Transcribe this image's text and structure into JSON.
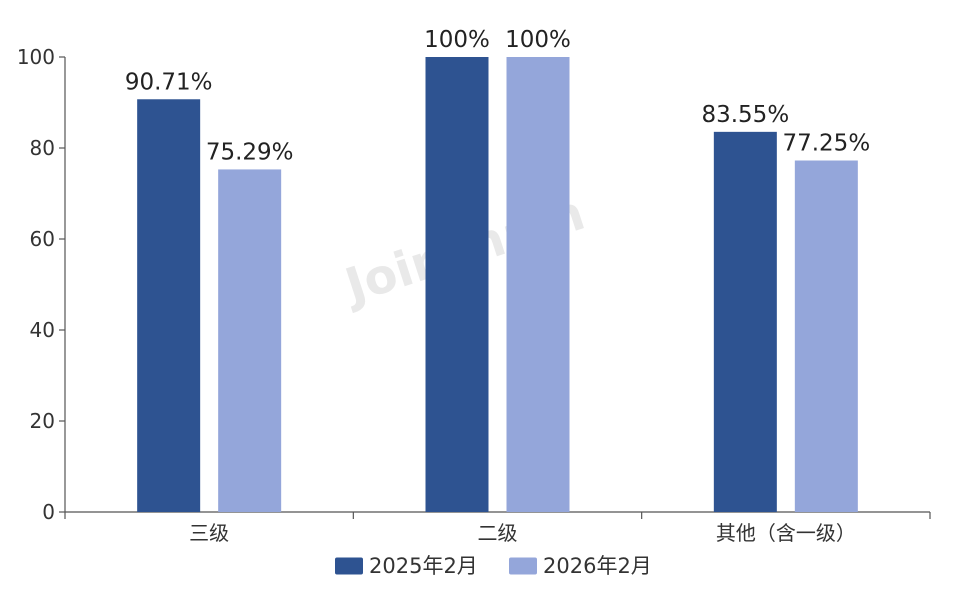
{
  "watermark": "Joinchain",
  "chart_data": {
    "type": "bar",
    "categories": [
      "三级",
      "二级",
      "其他（含一级）"
    ],
    "series": [
      {
        "name": "2025年2月",
        "color": "#2e5391",
        "values": [
          90.71,
          100,
          83.55
        ],
        "labels": [
          "90.71%",
          "100%",
          "83.55%"
        ]
      },
      {
        "name": "2026年2月",
        "color": "#94a6da",
        "values": [
          75.29,
          100,
          77.25
        ],
        "labels": [
          "75.29%",
          "100%",
          "77.25%"
        ]
      }
    ],
    "ylim": [
      0,
      100
    ],
    "yticks": [
      0,
      20,
      40,
      60,
      80,
      100
    ],
    "xlabel": "",
    "ylabel": "",
    "grid": false,
    "legend": "bottom"
  }
}
